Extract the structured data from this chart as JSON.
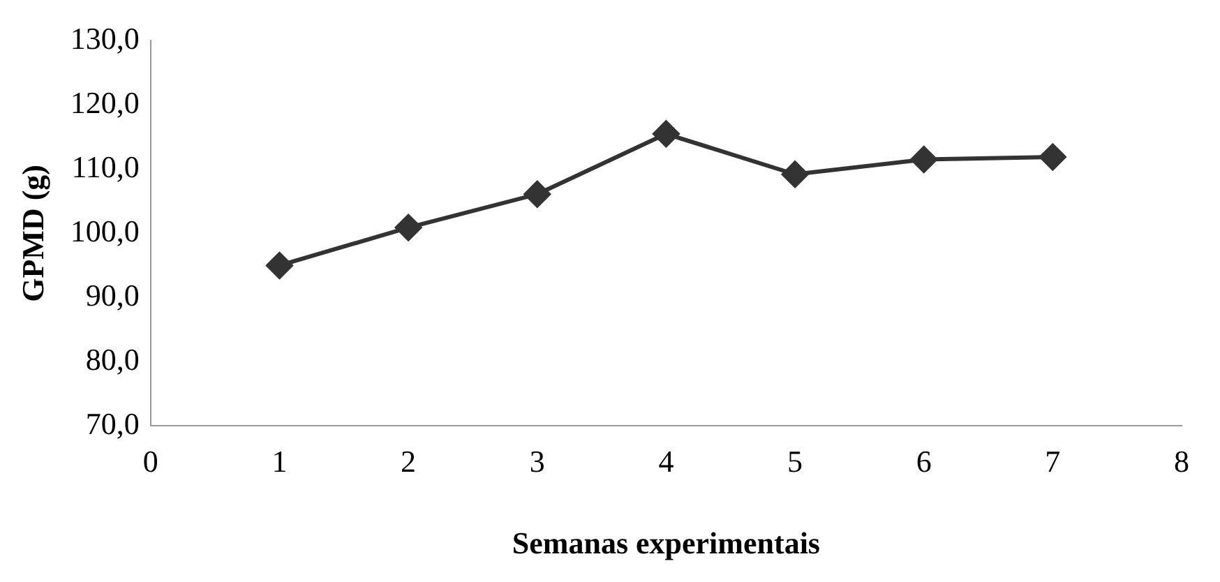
{
  "chart_data": {
    "type": "line",
    "xlabel": "Semanas experimentais",
    "ylabel": "GPMD (g)",
    "x": [
      1,
      2,
      3,
      4,
      5,
      6,
      7
    ],
    "series": [
      {
        "color": "#333333",
        "values": [
          95.0,
          100.9,
          106.1,
          115.5,
          109.2,
          111.5,
          111.9
        ]
      }
    ],
    "xlim": [
      0,
      8
    ],
    "xticks": [
      0,
      1,
      2,
      3,
      4,
      5,
      6,
      7,
      8
    ],
    "ylim": [
      70,
      130
    ],
    "yticks": [
      {
        "value": 70,
        "label": "70,0"
      },
      {
        "value": 80,
        "label": "80,0"
      },
      {
        "value": 90,
        "label": "90,0"
      },
      {
        "value": 100,
        "label": "100,0"
      },
      {
        "value": 110,
        "label": "110,0"
      },
      {
        "value": 120,
        "label": "120,0"
      },
      {
        "value": 130,
        "label": "130,0"
      }
    ],
    "grid": false,
    "legend": false,
    "marker": "diamond",
    "line_style": "solid"
  }
}
